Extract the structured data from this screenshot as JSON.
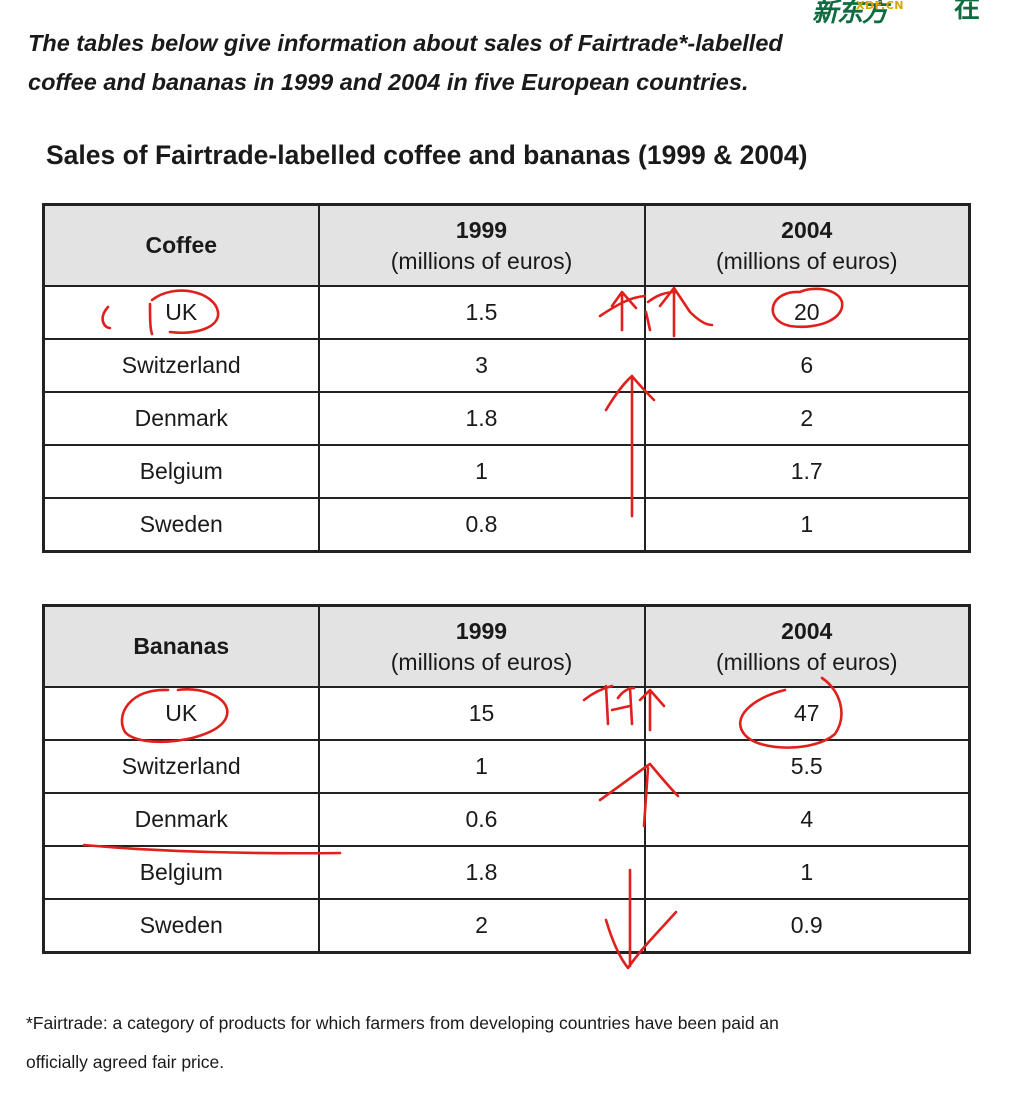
{
  "logo": {
    "mark": "新东方",
    "sub": "XDF.CN",
    "cn": "在"
  },
  "intro": {
    "line1": "The tables below give information about sales of Fairtrade*-labelled",
    "line2": "coffee and bananas in 1999 and 2004 in five European countries."
  },
  "heading": "Sales of Fairtrade-labelled coffee and bananas (1999 & 2004)",
  "chart_data": [
    {
      "type": "table",
      "columns": [
        "Coffee",
        "1999 (millions of euros)",
        "2004 (millions of euros)"
      ],
      "header": {
        "label": "Coffee",
        "y1": "1999",
        "y2": "2004",
        "unit": "(millions of euros)"
      },
      "rows": [
        [
          "UK",
          "1.5",
          "20"
        ],
        [
          "Switzerland",
          "3",
          "6"
        ],
        [
          "Denmark",
          "1.8",
          "2"
        ],
        [
          "Belgium",
          "1",
          "1.7"
        ],
        [
          "Sweden",
          "0.8",
          "1"
        ]
      ]
    },
    {
      "type": "table",
      "columns": [
        "Bananas",
        "1999 (millions of euros)",
        "2004 (millions of euros)"
      ],
      "header": {
        "label": "Bananas",
        "y1": "1999",
        "y2": "2004",
        "unit": "(millions of euros)"
      },
      "rows": [
        [
          "UK",
          "15",
          "47"
        ],
        [
          "Switzerland",
          "1",
          "5.5"
        ],
        [
          "Denmark",
          "0.6",
          "4"
        ],
        [
          "Belgium",
          "1.8",
          "1"
        ],
        [
          "Sweden",
          "2",
          "0.9"
        ]
      ]
    }
  ],
  "footnote": {
    "line1": "*Fairtrade: a category of products for which farmers from developing countries have been paid an",
    "line2": "officially agreed fair price."
  },
  "annotation_color": "#e0201c"
}
